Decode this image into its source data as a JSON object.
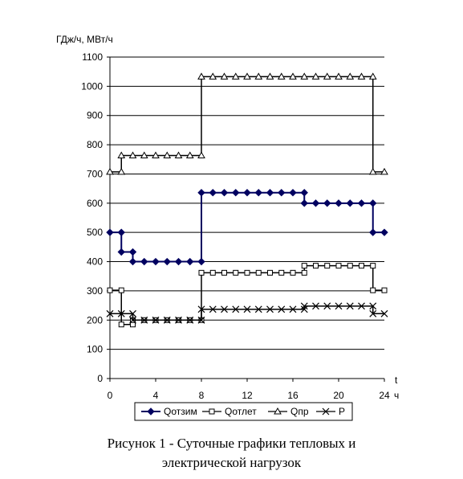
{
  "caption": {
    "line1": "Рисунок 1 - Суточные графики тепловых и",
    "line2": "электрической нагрузок"
  },
  "chart_data": {
    "type": "line",
    "ylabel": "ГДж/ч, МВт/ч",
    "xlabel_t": "t",
    "xlabel_unit": "ч",
    "xlim": [
      0,
      24
    ],
    "ylim": [
      0,
      1100
    ],
    "xticks": [
      0,
      4,
      8,
      12,
      16,
      20,
      24
    ],
    "yticks": [
      0,
      100,
      200,
      300,
      400,
      500,
      600,
      700,
      800,
      900,
      1000,
      1100
    ],
    "grid": "horizontal",
    "legend_position": "bottom",
    "series": [
      {
        "name": "Qотзим",
        "marker": "diamond-filled",
        "color": "#000060",
        "step": [
          [
            0,
            500
          ],
          [
            1,
            500
          ],
          [
            1,
            433
          ],
          [
            2,
            433
          ],
          [
            2,
            400
          ],
          [
            8,
            400
          ],
          [
            8,
            636
          ],
          [
            17,
            636
          ],
          [
            17,
            600
          ],
          [
            23,
            600
          ],
          [
            23,
            500
          ],
          [
            24,
            500
          ]
        ],
        "points": [
          [
            0,
            500
          ],
          [
            1,
            500
          ],
          [
            1,
            433
          ],
          [
            2,
            433
          ],
          [
            2,
            400
          ],
          [
            3,
            400
          ],
          [
            4,
            400
          ],
          [
            5,
            400
          ],
          [
            6,
            400
          ],
          [
            7,
            400
          ],
          [
            8,
            400
          ],
          [
            8,
            636
          ],
          [
            9,
            636
          ],
          [
            10,
            636
          ],
          [
            11,
            636
          ],
          [
            12,
            636
          ],
          [
            13,
            636
          ],
          [
            14,
            636
          ],
          [
            15,
            636
          ],
          [
            16,
            636
          ],
          [
            17,
            636
          ],
          [
            17,
            600
          ],
          [
            18,
            600
          ],
          [
            19,
            600
          ],
          [
            20,
            600
          ],
          [
            21,
            600
          ],
          [
            22,
            600
          ],
          [
            23,
            600
          ],
          [
            23,
            500
          ],
          [
            24,
            500
          ]
        ]
      },
      {
        "name": "Qотлет",
        "marker": "square-open",
        "color": "#000000",
        "step": [
          [
            0,
            302
          ],
          [
            1,
            302
          ],
          [
            1,
            185
          ],
          [
            2,
            185
          ],
          [
            2,
            200
          ],
          [
            8,
            200
          ],
          [
            8,
            362
          ],
          [
            17,
            362
          ],
          [
            17,
            386
          ],
          [
            23,
            386
          ],
          [
            23,
            302
          ],
          [
            24,
            302
          ]
        ],
        "points": [
          [
            0,
            302
          ],
          [
            1,
            302
          ],
          [
            1,
            185
          ],
          [
            2,
            185
          ],
          [
            2,
            200
          ],
          [
            3,
            200
          ],
          [
            4,
            200
          ],
          [
            5,
            200
          ],
          [
            6,
            200
          ],
          [
            7,
            200
          ],
          [
            8,
            200
          ],
          [
            8,
            362
          ],
          [
            9,
            362
          ],
          [
            10,
            362
          ],
          [
            11,
            362
          ],
          [
            12,
            362
          ],
          [
            13,
            362
          ],
          [
            14,
            362
          ],
          [
            15,
            362
          ],
          [
            16,
            362
          ],
          [
            17,
            362
          ],
          [
            17,
            386
          ],
          [
            18,
            386
          ],
          [
            19,
            386
          ],
          [
            20,
            386
          ],
          [
            21,
            386
          ],
          [
            22,
            386
          ],
          [
            23,
            386
          ],
          [
            23,
            302
          ],
          [
            24,
            302
          ]
        ]
      },
      {
        "name": "Qпр",
        "marker": "triangle-open",
        "color": "#000000",
        "step": [
          [
            0,
            707
          ],
          [
            1,
            707
          ],
          [
            1,
            763
          ],
          [
            8,
            763
          ],
          [
            8,
            1033
          ],
          [
            23,
            1033
          ],
          [
            23,
            707
          ],
          [
            24,
            707
          ]
        ],
        "points": [
          [
            0,
            707
          ],
          [
            1,
            707
          ],
          [
            1,
            763
          ],
          [
            2,
            763
          ],
          [
            3,
            763
          ],
          [
            4,
            763
          ],
          [
            5,
            763
          ],
          [
            6,
            763
          ],
          [
            7,
            763
          ],
          [
            8,
            763
          ],
          [
            8,
            1033
          ],
          [
            9,
            1033
          ],
          [
            10,
            1033
          ],
          [
            11,
            1033
          ],
          [
            12,
            1033
          ],
          [
            13,
            1033
          ],
          [
            14,
            1033
          ],
          [
            15,
            1033
          ],
          [
            16,
            1033
          ],
          [
            17,
            1033
          ],
          [
            18,
            1033
          ],
          [
            19,
            1033
          ],
          [
            20,
            1033
          ],
          [
            21,
            1033
          ],
          [
            22,
            1033
          ],
          [
            23,
            1033
          ],
          [
            23,
            707
          ],
          [
            24,
            707
          ]
        ]
      },
      {
        "name": "P",
        "marker": "x",
        "color": "#000000",
        "step": [
          [
            0,
            222
          ],
          [
            2,
            222
          ],
          [
            2,
            200
          ],
          [
            8,
            200
          ],
          [
            8,
            237
          ],
          [
            17,
            237
          ],
          [
            17,
            248
          ],
          [
            23,
            248
          ],
          [
            23,
            222
          ],
          [
            24,
            222
          ]
        ],
        "points": [
          [
            0,
            222
          ],
          [
            1,
            222
          ],
          [
            2,
            222
          ],
          [
            2,
            200
          ],
          [
            3,
            200
          ],
          [
            4,
            200
          ],
          [
            5,
            200
          ],
          [
            6,
            200
          ],
          [
            7,
            200
          ],
          [
            8,
            200
          ],
          [
            8,
            237
          ],
          [
            9,
            237
          ],
          [
            10,
            237
          ],
          [
            11,
            237
          ],
          [
            12,
            237
          ],
          [
            13,
            237
          ],
          [
            14,
            237
          ],
          [
            15,
            237
          ],
          [
            16,
            237
          ],
          [
            17,
            237
          ],
          [
            17,
            248
          ],
          [
            18,
            248
          ],
          [
            19,
            248
          ],
          [
            20,
            248
          ],
          [
            21,
            248
          ],
          [
            22,
            248
          ],
          [
            23,
            248
          ],
          [
            23,
            222
          ],
          [
            24,
            222
          ]
        ]
      }
    ]
  }
}
